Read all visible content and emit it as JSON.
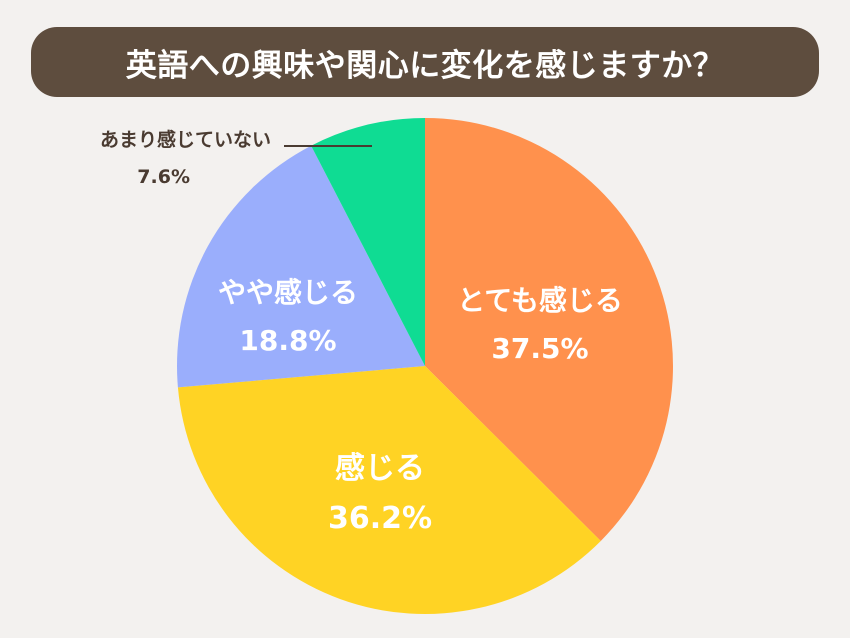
{
  "chart_data": {
    "type": "pie",
    "title": "英語への興味や関心に変化を感じますか？",
    "slices": [
      {
        "label": "とても感じる",
        "value": 37.5,
        "value_label": "37.5%",
        "color": "#ff914d"
      },
      {
        "label": "感じる",
        "value": 36.2,
        "value_label": "36.2%",
        "color": "#ffd324"
      },
      {
        "label": "やや感じる",
        "value": 18.8,
        "value_label": "18.8%",
        "color": "#9aaefc"
      },
      {
        "label": "あまり感じていない",
        "value": 7.6,
        "value_label": "7.6%",
        "color": "#0fdc93"
      }
    ],
    "start": "12 o'clock",
    "direction": "clockwise",
    "legend": "none"
  },
  "colors": {
    "background": "#f3f1ef",
    "title_bar": "#5e4d3e",
    "title_text": "#ffffff",
    "inside_label": "#ffffff",
    "outside_label": "#4a3b31",
    "leader_line": "#4a3b31"
  }
}
